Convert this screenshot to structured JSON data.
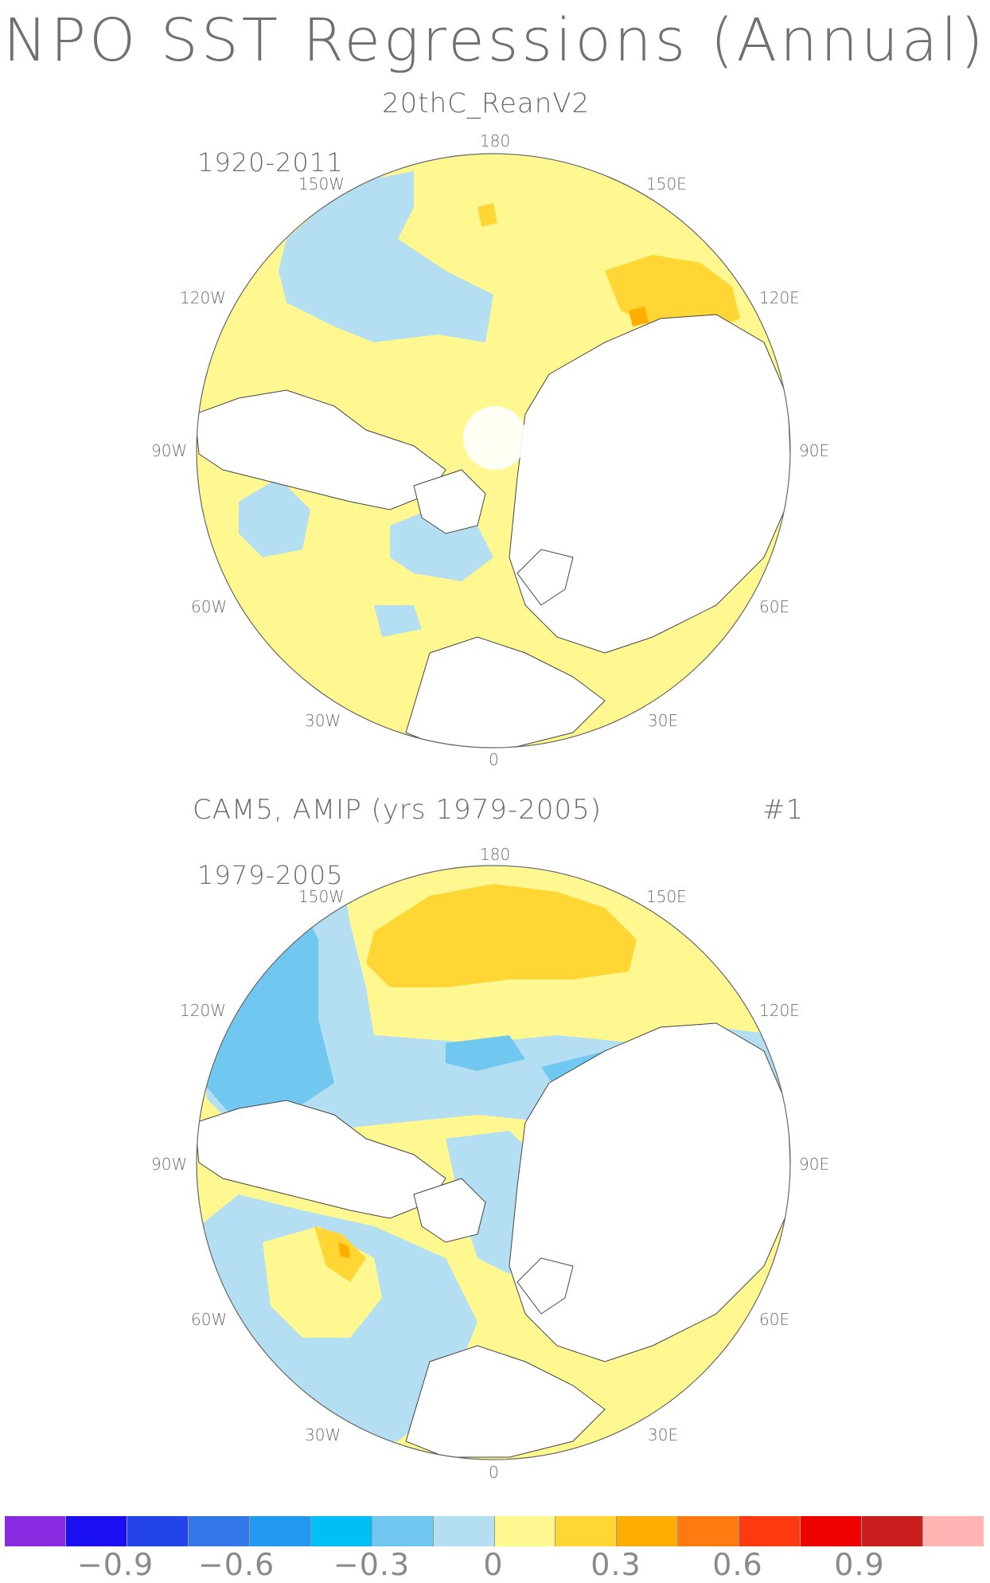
{
  "title": "NPO SST Regressions (Annual)",
  "panels": [
    {
      "title": "20thC_ReanV2",
      "run_label": "",
      "period": "1920-2011",
      "lon_labels": {
        "top": "180",
        "bottom": "0",
        "left_150": "150W",
        "left_120": "120W",
        "left_90": "90W",
        "left_60": "60W",
        "left_30": "30W",
        "right_150": "150E",
        "right_120": "120E",
        "right_90": "90E",
        "right_60": "60E",
        "right_30": "30E"
      }
    },
    {
      "title": "CAM5, AMIP (yrs 1979-2005)",
      "run_label": "#1",
      "period": "1979-2005",
      "lon_labels": {
        "top": "180",
        "bottom": "0",
        "left_150": "150W",
        "left_120": "120W",
        "left_90": "90W",
        "left_60": "60W",
        "left_30": "30W",
        "right_150": "150E",
        "right_120": "120E",
        "right_90": "90E",
        "right_60": "60E",
        "right_30": "30E"
      }
    }
  ],
  "colorbar": {
    "colors": [
      "#8a2be2",
      "#1a0ff0",
      "#2244e8",
      "#3377e8",
      "#2299f0",
      "#00bff5",
      "#70c8f0",
      "#b4def2",
      "#fff790",
      "#ffd633",
      "#ffad00",
      "#ff7a10",
      "#ff3a10",
      "#ee0000",
      "#c81e1e",
      "#ffb4b4"
    ],
    "labels": [
      "−0.9",
      "−0.6",
      "−0.3",
      "0",
      "0.3",
      "0.6",
      "0.9"
    ]
  },
  "map_colors": {
    "positive_weak": "#fff790",
    "positive_mid": "#ffd633",
    "positive_strong": "#ffad00",
    "negative_weak": "#b4def2",
    "negative_mid": "#70c8f0",
    "land": "#ffffff"
  }
}
